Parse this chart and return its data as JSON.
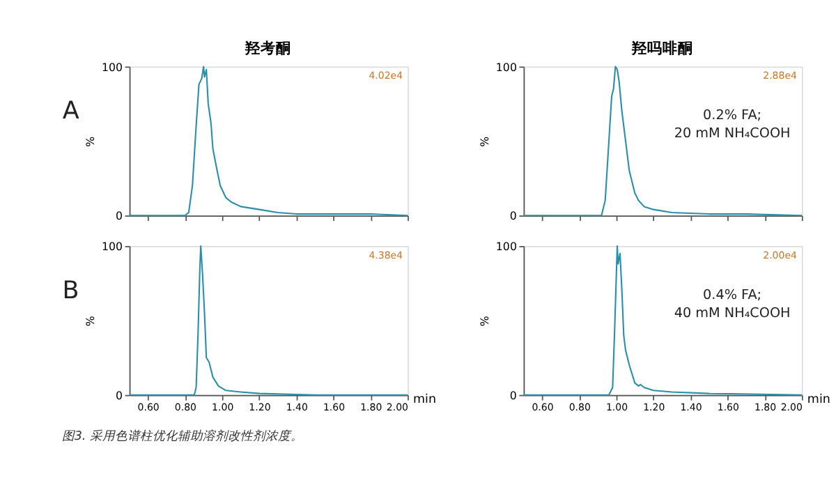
{
  "chart_data": [
    {
      "type": "line",
      "title": "羟考酮",
      "ylabel": "%",
      "xlim": [
        0.5,
        2.0
      ],
      "ylim": [
        0,
        100
      ],
      "yticks": [
        0,
        100
      ],
      "xticks": [
        0.6,
        0.8,
        1.0,
        1.2,
        1.4,
        1.6,
        1.8,
        2.0
      ],
      "tick_labels": "y",
      "grid": false,
      "marker": "none",
      "line_style": "solid",
      "annotations": [
        "4.02e4",
        "A"
      ],
      "series": [
        {
          "color": "#2a8fa8",
          "x": [
            0.5,
            0.8,
            0.82,
            0.84,
            0.86,
            0.875,
            0.89,
            0.9,
            0.905,
            0.915,
            0.925,
            0.94,
            0.95,
            0.97,
            0.99,
            1.02,
            1.05,
            1.1,
            1.2,
            1.3,
            1.4,
            1.6,
            1.8,
            2.0
          ],
          "values": [
            0,
            0,
            2,
            20,
            60,
            88,
            92,
            100,
            93,
            98,
            75,
            62,
            45,
            32,
            20,
            12,
            9,
            6,
            4,
            2,
            1,
            1,
            1,
            0
          ]
        }
      ]
    },
    {
      "type": "line",
      "title": "羟吗啡酮",
      "ylabel": "%",
      "xlim": [
        0.5,
        2.0
      ],
      "ylim": [
        0,
        100
      ],
      "yticks": [
        0,
        100
      ],
      "xticks": [
        0.6,
        0.8,
        1.0,
        1.2,
        1.4,
        1.6,
        1.8,
        2.0
      ],
      "tick_labels": "y",
      "grid": false,
      "marker": "none",
      "line_style": "solid",
      "annotations": [
        "2.88e4",
        "0.2% FA;\n20 mM NH₄COOH"
      ],
      "series": [
        {
          "color": "#2a8fa8",
          "x": [
            0.5,
            0.92,
            0.94,
            0.96,
            0.975,
            0.985,
            0.995,
            1.005,
            1.015,
            1.03,
            1.05,
            1.07,
            1.09,
            1.1,
            1.12,
            1.15,
            1.2,
            1.3,
            1.5,
            1.7,
            2.0
          ],
          "values": [
            0,
            0,
            10,
            50,
            80,
            85,
            100,
            98,
            90,
            70,
            50,
            30,
            20,
            15,
            10,
            6,
            4,
            2,
            1,
            1,
            0
          ]
        }
      ]
    },
    {
      "type": "line",
      "xlabel": "min",
      "ylabel": "%",
      "xlim": [
        0.5,
        2.0
      ],
      "ylim": [
        0,
        100
      ],
      "yticks": [
        0,
        100
      ],
      "xticks": [
        {
          "value": 0.6,
          "label": "0.60"
        },
        {
          "value": 0.8,
          "label": "0.80"
        },
        {
          "value": 1.0,
          "label": "1.00"
        },
        {
          "value": 1.2,
          "label": "1.20"
        },
        {
          "value": 1.4,
          "label": "1.40"
        },
        {
          "value": 1.6,
          "label": "1.60"
        },
        {
          "value": 1.8,
          "label": "1.80"
        },
        {
          "value": 2.0,
          "label": "2.00"
        }
      ],
      "grid": false,
      "marker": "none",
      "line_style": "solid",
      "annotations": [
        "4.38e4",
        "B"
      ],
      "series": [
        {
          "color": "#2a8fa8",
          "x": [
            0.5,
            0.85,
            0.86,
            0.87,
            0.88,
            0.885,
            0.895,
            0.905,
            0.915,
            0.93,
            0.95,
            0.98,
            1.02,
            1.1,
            1.2,
            1.5,
            2.0
          ],
          "values": [
            0,
            0,
            5,
            40,
            85,
            100,
            80,
            55,
            25,
            22,
            12,
            6,
            3,
            2,
            1,
            0,
            0
          ]
        }
      ]
    },
    {
      "type": "line",
      "xlabel": "min",
      "ylabel": "%",
      "xlim": [
        0.5,
        2.0
      ],
      "ylim": [
        0,
        100
      ],
      "yticks": [
        0,
        100
      ],
      "xticks": [
        {
          "value": 0.6,
          "label": "0.60"
        },
        {
          "value": 0.8,
          "label": "0.80"
        },
        {
          "value": 1.0,
          "label": "1.00"
        },
        {
          "value": 1.2,
          "label": "1.20"
        },
        {
          "value": 1.4,
          "label": "1.40"
        },
        {
          "value": 1.6,
          "label": "1.60"
        },
        {
          "value": 1.8,
          "label": "1.80"
        },
        {
          "value": 2.0,
          "label": "2.00"
        }
      ],
      "grid": false,
      "marker": "none",
      "line_style": "solid",
      "annotations": [
        "2.00e4",
        "0.4% FA;\n40 mM NH₄COOH",
        "图3. 采用色谱柱优化辅助溶剂改性剂浓度。"
      ],
      "series": [
        {
          "color": "#2a8fa8",
          "x": [
            0.5,
            0.96,
            0.98,
            0.99,
            1.0,
            1.005,
            1.01,
            1.02,
            1.03,
            1.04,
            1.05,
            1.07,
            1.1,
            1.12,
            1.13,
            1.15,
            1.2,
            1.3,
            1.5,
            2.0
          ],
          "values": [
            0,
            0,
            5,
            40,
            80,
            100,
            88,
            95,
            70,
            40,
            30,
            20,
            8,
            6,
            7,
            5,
            3,
            2,
            1,
            0
          ]
        }
      ]
    }
  ]
}
